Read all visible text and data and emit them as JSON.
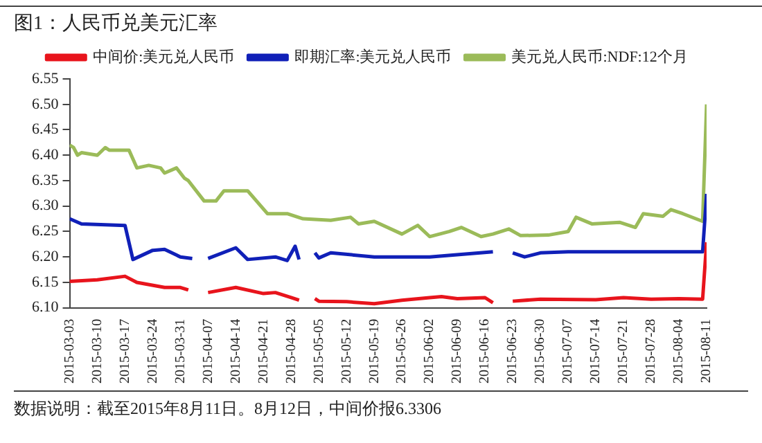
{
  "chart_data": {
    "type": "line",
    "title": "图1：人民币兑美元汇率",
    "legend": "top",
    "grid": false,
    "marker": "none",
    "line_style": "solid",
    "xlim": [
      "2015-03-03",
      "2015-08-11"
    ],
    "xticks": [
      "2015-03-03",
      "2015-03-10",
      "2015-03-17",
      "2015-03-24",
      "2015-03-31",
      "2015-04-07",
      "2015-04-14",
      "2015-04-21",
      "2015-04-28",
      "2015-05-05",
      "2015-05-12",
      "2015-05-19",
      "2015-05-26",
      "2015-06-02",
      "2015-06-09",
      "2015-06-16",
      "2015-06-23",
      "2015-06-30",
      "2015-07-07",
      "2015-07-14",
      "2015-07-21",
      "2015-07-28",
      "2015-08-04",
      "2015-08-11"
    ],
    "ylim": [
      6.1,
      6.55
    ],
    "yticks": [
      {
        "value": 6.1,
        "label": "6.10"
      },
      6.15,
      {
        "value": 6.2,
        "label": "6.20"
      },
      6.25,
      {
        "value": 6.3,
        "label": "6.30"
      },
      6.35,
      {
        "value": 6.4,
        "label": "6.40"
      },
      6.45,
      {
        "value": 6.5,
        "label": "6.50"
      },
      6.55
    ],
    "series": [
      {
        "name": "中间价:美元兑人民币",
        "color": "#e8141c",
        "x": [
          "2015-03-03",
          "2015-03-10",
          "2015-03-17",
          "2015-03-20",
          "2015-03-27",
          "2015-03-31",
          "2015-04-02",
          "2015-04-04",
          "2015-04-07",
          "2015-04-14",
          "2015-04-21",
          "2015-04-24",
          "2015-04-28",
          "2015-04-30",
          "2015-05-02",
          "2015-05-04",
          "2015-05-05",
          "2015-05-12",
          "2015-05-19",
          "2015-05-26",
          "2015-06-02",
          "2015-06-05",
          "2015-06-09",
          "2015-06-16",
          "2015-06-18",
          "2015-06-20",
          "2015-06-23",
          "2015-06-30",
          "2015-07-14",
          "2015-07-21",
          "2015-07-28",
          "2015-08-04",
          "2015-08-10",
          "2015-08-11"
        ],
        "values": [
          6.152,
          6.155,
          6.162,
          6.15,
          6.14,
          6.14,
          6.135,
          null,
          6.13,
          6.14,
          6.128,
          6.13,
          6.12,
          6.115,
          null,
          6.118,
          6.113,
          6.112,
          6.108,
          6.115,
          6.12,
          6.122,
          6.118,
          6.12,
          6.11,
          null,
          6.113,
          6.117,
          6.116,
          6.12,
          6.117,
          6.118,
          6.117,
          6.229
        ]
      },
      {
        "name": "即期汇率:美元兑人民币",
        "color": "#1020b8",
        "x": [
          "2015-03-03",
          "2015-03-06",
          "2015-03-17",
          "2015-03-19",
          "2015-03-24",
          "2015-03-27",
          "2015-03-31",
          "2015-04-03",
          "2015-04-05",
          "2015-04-07",
          "2015-04-14",
          "2015-04-17",
          "2015-04-24",
          "2015-04-27",
          "2015-04-29",
          "2015-04-30",
          "2015-05-01",
          "2015-05-04",
          "2015-05-05",
          "2015-05-08",
          "2015-05-19",
          "2015-06-02",
          "2015-06-18",
          "2015-06-20",
          "2015-06-23",
          "2015-06-26",
          "2015-06-30",
          "2015-07-07",
          "2015-08-10",
          "2015-08-11"
        ],
        "values": [
          6.275,
          6.265,
          6.262,
          6.195,
          6.213,
          6.215,
          6.2,
          6.197,
          null,
          6.197,
          6.218,
          6.195,
          6.2,
          6.193,
          6.221,
          6.195,
          null,
          6.208,
          6.198,
          6.208,
          6.2,
          6.2,
          6.21,
          null,
          6.208,
          6.2,
          6.208,
          6.21,
          6.21,
          6.324
        ]
      },
      {
        "name": "美元兑人民币:NDF:12个月",
        "color": "#9bbb59",
        "x": [
          "2015-03-03",
          "2015-03-04",
          "2015-03-05",
          "2015-03-06",
          "2015-03-10",
          "2015-03-12",
          "2015-03-13",
          "2015-03-18",
          "2015-03-20",
          "2015-03-23",
          "2015-03-26",
          "2015-03-27",
          "2015-03-30",
          "2015-04-01",
          "2015-04-02",
          "2015-04-06",
          "2015-04-09",
          "2015-04-11",
          "2015-04-17",
          "2015-04-22",
          "2015-04-27",
          "2015-05-01",
          "2015-05-08",
          "2015-05-13",
          "2015-05-15",
          "2015-05-19",
          "2015-05-26",
          "2015-05-30",
          "2015-06-02",
          "2015-06-07",
          "2015-06-10",
          "2015-06-15",
          "2015-06-18",
          "2015-06-22",
          "2015-06-25",
          "2015-07-02",
          "2015-07-07",
          "2015-07-09",
          "2015-07-13",
          "2015-07-20",
          "2015-07-24",
          "2015-07-26",
          "2015-07-31",
          "2015-08-02",
          "2015-08-05",
          "2015-08-10",
          "2015-08-11"
        ],
        "values": [
          6.42,
          6.415,
          6.4,
          6.405,
          6.4,
          6.415,
          6.41,
          6.41,
          6.375,
          6.38,
          6.375,
          6.365,
          6.375,
          6.355,
          6.35,
          6.31,
          6.31,
          6.33,
          6.33,
          6.285,
          6.285,
          6.275,
          6.272,
          6.278,
          6.265,
          6.27,
          6.245,
          6.262,
          6.24,
          6.25,
          6.258,
          6.24,
          6.245,
          6.255,
          6.242,
          6.243,
          6.25,
          6.278,
          6.265,
          6.268,
          6.258,
          6.285,
          6.28,
          6.293,
          6.285,
          6.27,
          6.5
        ]
      }
    ],
    "annotations": [
      "数据说明：截至2015年8月11日。8月12日，中间价报6.3306"
    ]
  }
}
